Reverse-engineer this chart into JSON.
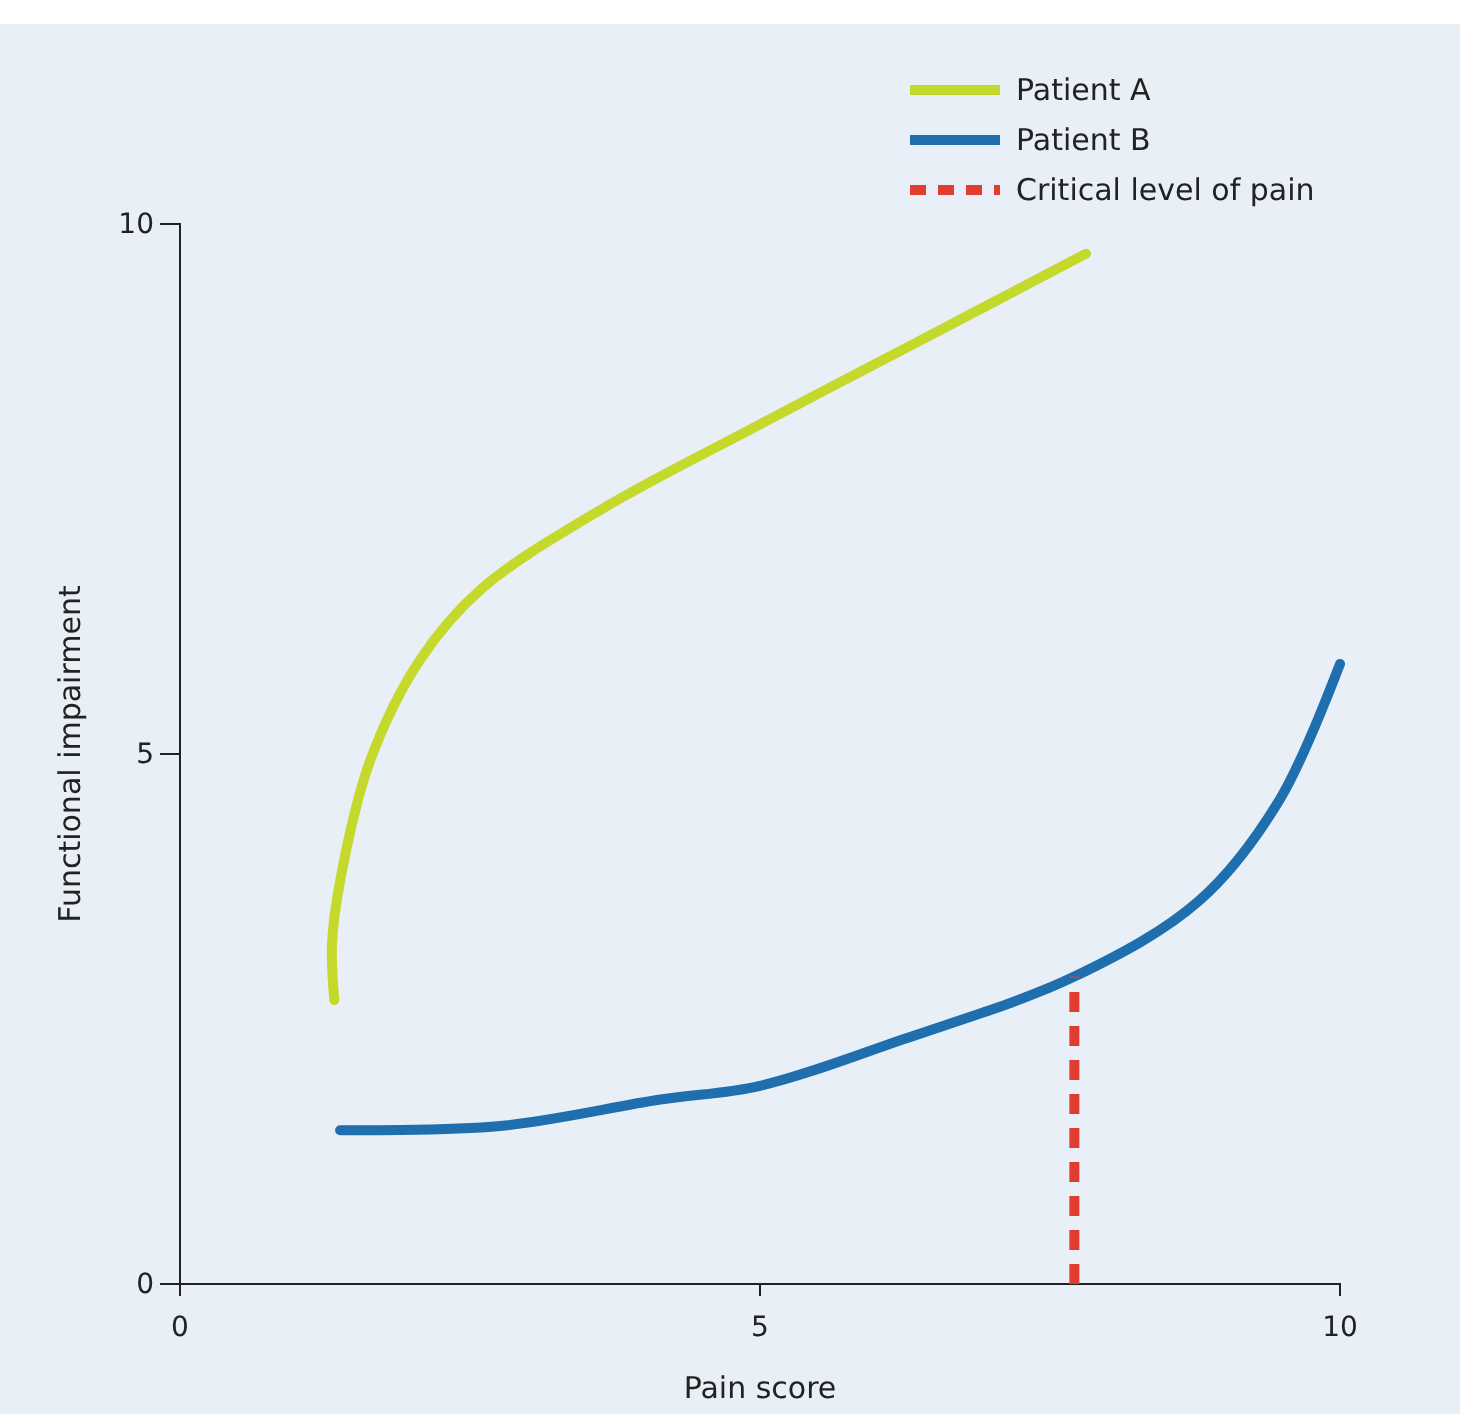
{
  "chart_data": {
    "type": "line",
    "xlabel": "Pain score",
    "ylabel": "Functional impairment",
    "xlim": [
      0,
      10
    ],
    "xticks": [
      0,
      5,
      10
    ],
    "ylim": [
      0,
      10
    ],
    "yticks": [
      0,
      5,
      10
    ],
    "grid": false,
    "legend": "top right",
    "marker": "none",
    "series": [
      {
        "name": "Patient A",
        "color": "#c5d92d",
        "line_style": "solid",
        "x": [
          1.33,
          1.31,
          1.38,
          1.64,
          2.07,
          2.59,
          3.62,
          5,
          6.38,
          7.81
        ],
        "values": [
          2.68,
          3.2,
          3.8,
          4.94,
          5.89,
          6.55,
          7.3,
          8.11,
          8.9,
          9.72
        ]
      },
      {
        "name": "Patient B",
        "color": "#1f6fae",
        "line_style": "solid",
        "x": [
          1.38,
          2.76,
          4.14,
          5,
          6.21,
          7.71,
          8.79,
          9.48,
          10
        ],
        "values": [
          1.45,
          1.49,
          1.74,
          1.87,
          2.3,
          2.9,
          3.62,
          4.57,
          5.85
        ]
      },
      {
        "name": "Critical level of pain",
        "color": "#e03c31",
        "line_style": "dashed",
        "x": [
          7.71,
          7.71
        ],
        "values": [
          0,
          2.9
        ]
      }
    ]
  }
}
